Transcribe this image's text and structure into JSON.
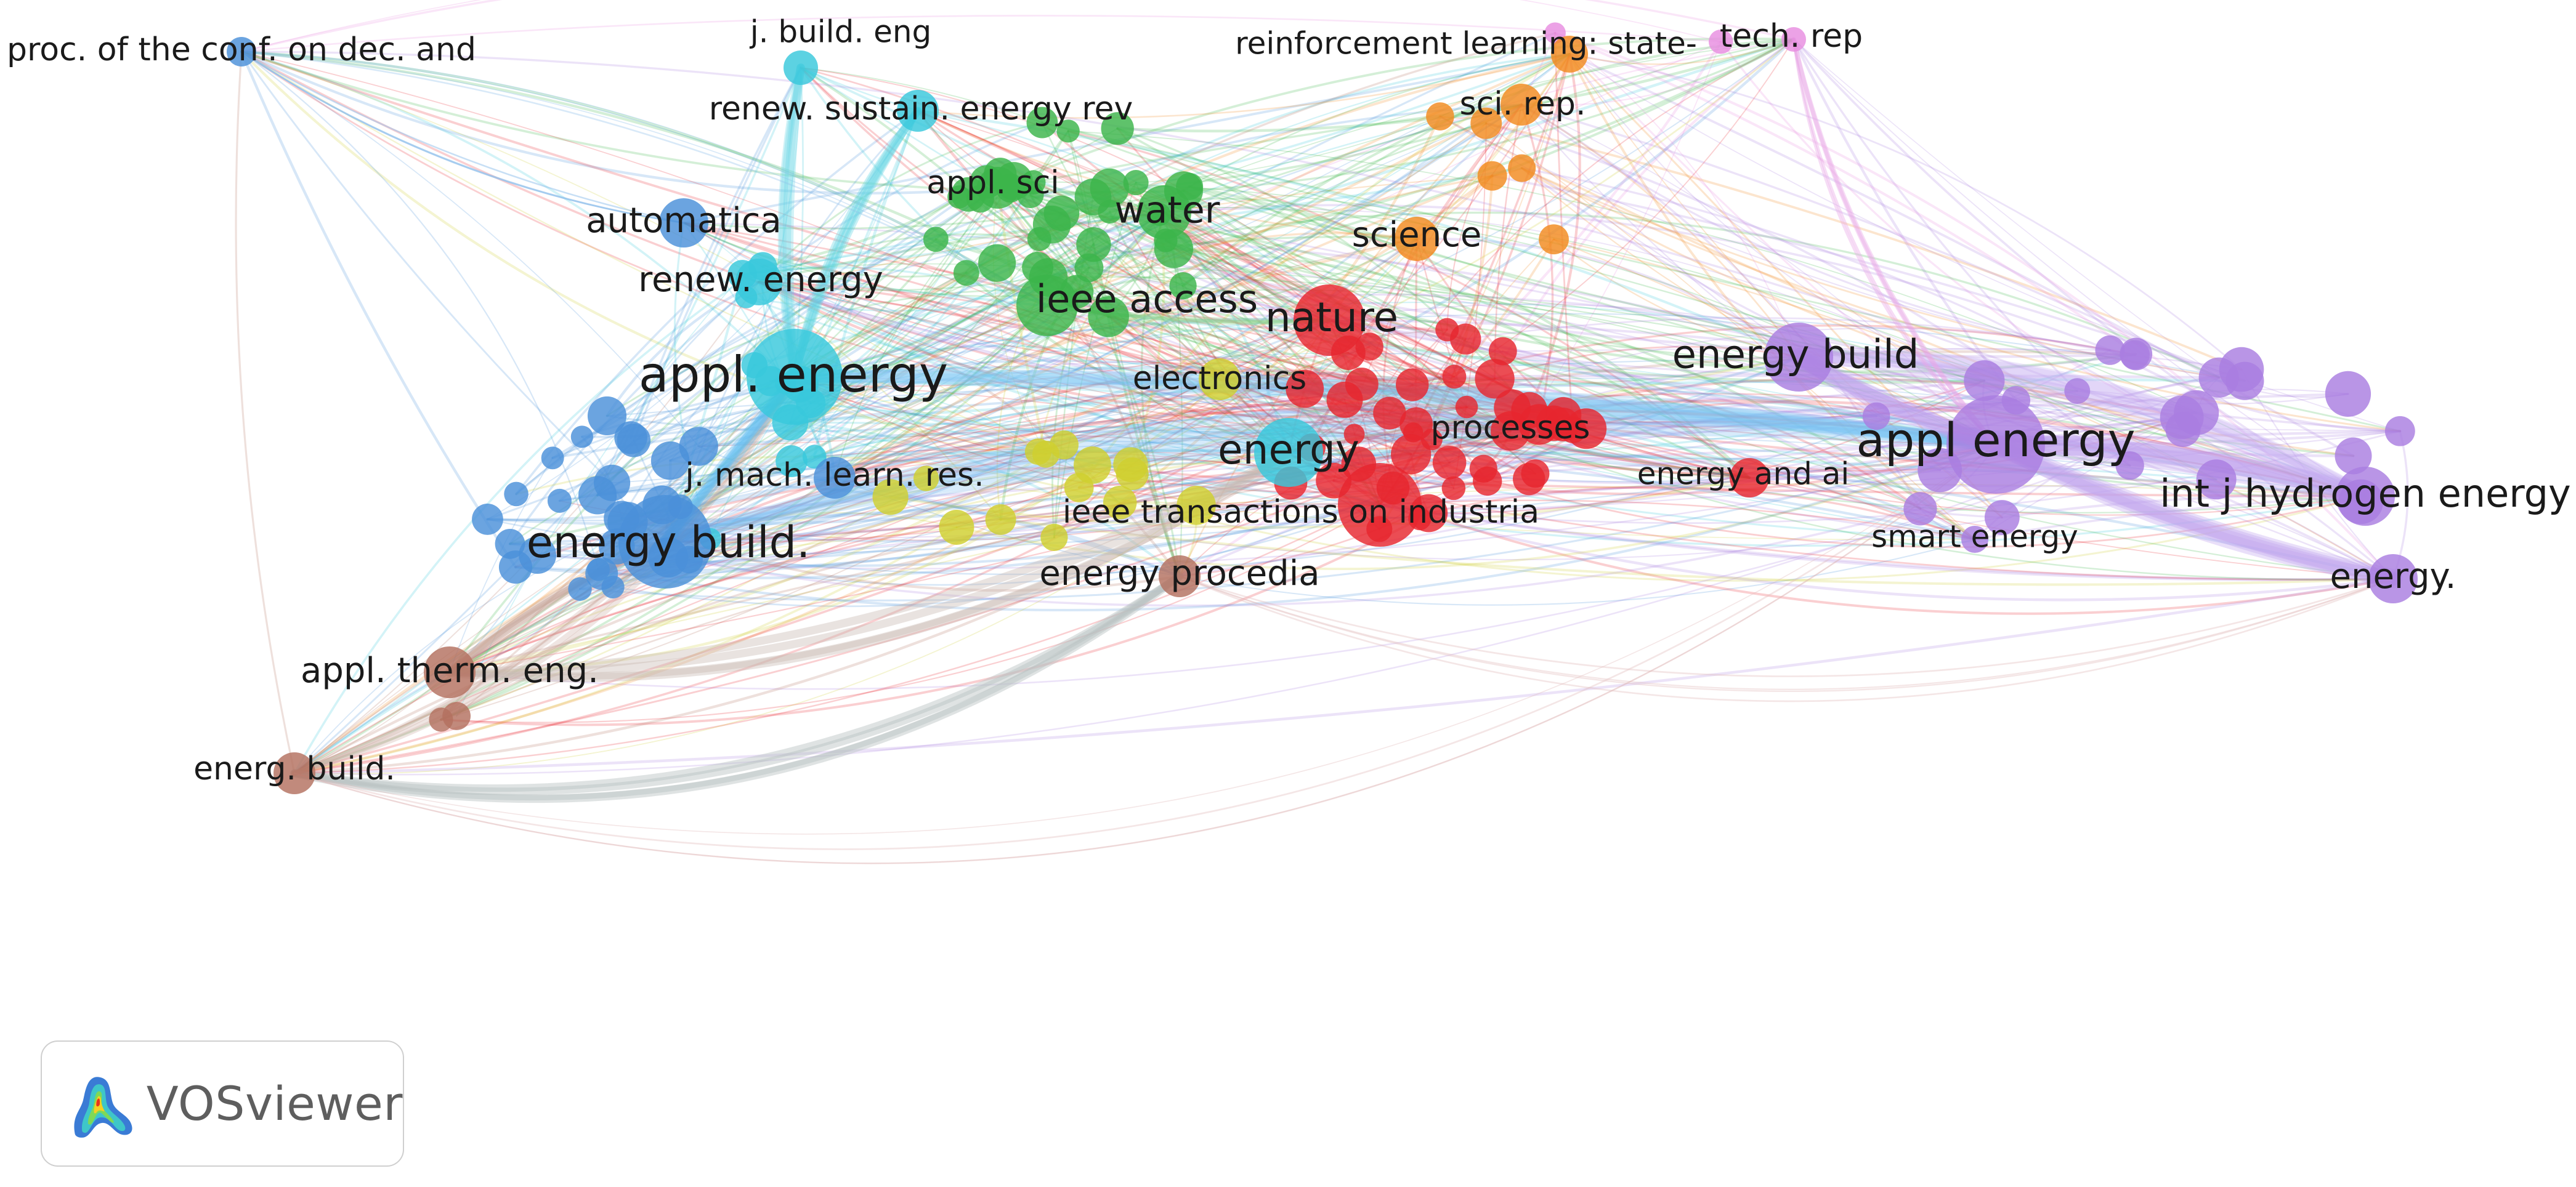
{
  "app": {
    "name": "VOSviewer"
  },
  "clusters": {
    "blue": "#4a90d9",
    "cyan": "#38c8dc",
    "green": "#3cb44b",
    "red": "#e6262e",
    "yellow": "#cfcf2e",
    "purple": "#a97ee0",
    "orange": "#f28a1e",
    "brown": "#b3705f",
    "pink": "#e88ee0"
  },
  "labels": [
    {
      "id": "proc-conf",
      "text": "proc. of the conf. on dec. and",
      "cluster": "blue"
    },
    {
      "id": "j-build-eng",
      "text": "j. build. eng",
      "cluster": "cyan"
    },
    {
      "id": "renew-sustain",
      "text": "renew. sustain. energy rev",
      "cluster": "cyan"
    },
    {
      "id": "appl-sci",
      "text": "appl. sci",
      "cluster": "green"
    },
    {
      "id": "water",
      "text": "water",
      "cluster": "green"
    },
    {
      "id": "automatica",
      "text": "automatica",
      "cluster": "blue"
    },
    {
      "id": "renew-energy",
      "text": "renew. energy",
      "cluster": "cyan"
    },
    {
      "id": "ieee-access",
      "text": "ieee access",
      "cluster": "green"
    },
    {
      "id": "science",
      "text": "science",
      "cluster": "orange"
    },
    {
      "id": "nature",
      "text": "nature",
      "cluster": "red"
    },
    {
      "id": "rl-state",
      "text": "reinforcement learning: state-",
      "cluster": "orange"
    },
    {
      "id": "sci-rep",
      "text": "sci. rep.",
      "cluster": "orange"
    },
    {
      "id": "tech-rep",
      "text": "tech. rep",
      "cluster": "pink"
    },
    {
      "id": "appl-energy-cyan",
      "text": "appl. energy",
      "cluster": "cyan"
    },
    {
      "id": "electronics",
      "text": "electronics",
      "cluster": "yellow"
    },
    {
      "id": "energy-build-purple",
      "text": "energy build",
      "cluster": "purple"
    },
    {
      "id": "energy",
      "text": "energy",
      "cluster": "cyan"
    },
    {
      "id": "processes",
      "text": "processes",
      "cluster": "red"
    },
    {
      "id": "appl-energy-purple",
      "text": "appl energy",
      "cluster": "purple"
    },
    {
      "id": "j-mach-learn",
      "text": "j. mach. learn. res.",
      "cluster": "blue"
    },
    {
      "id": "energy-and-ai",
      "text": "energy and ai",
      "cluster": "red"
    },
    {
      "id": "int-j-hydrogen",
      "text": "int j hydrogen energy",
      "cluster": "purple"
    },
    {
      "id": "ieee-trans-ind",
      "text": "ieee transactions on industria",
      "cluster": "red"
    },
    {
      "id": "smart-energy",
      "text": "smart energy",
      "cluster": "purple"
    },
    {
      "id": "energy-build-blue",
      "text": "energy build.",
      "cluster": "blue"
    },
    {
      "id": "energy-procedia",
      "text": "energy procedia",
      "cluster": "brown"
    },
    {
      "id": "energy-dot",
      "text": "energy.",
      "cluster": "purple"
    },
    {
      "id": "appl-therm-eng",
      "text": "appl. therm. eng.",
      "cluster": "brown"
    },
    {
      "id": "energ-build",
      "text": "energ. build.",
      "cluster": "brown"
    }
  ]
}
